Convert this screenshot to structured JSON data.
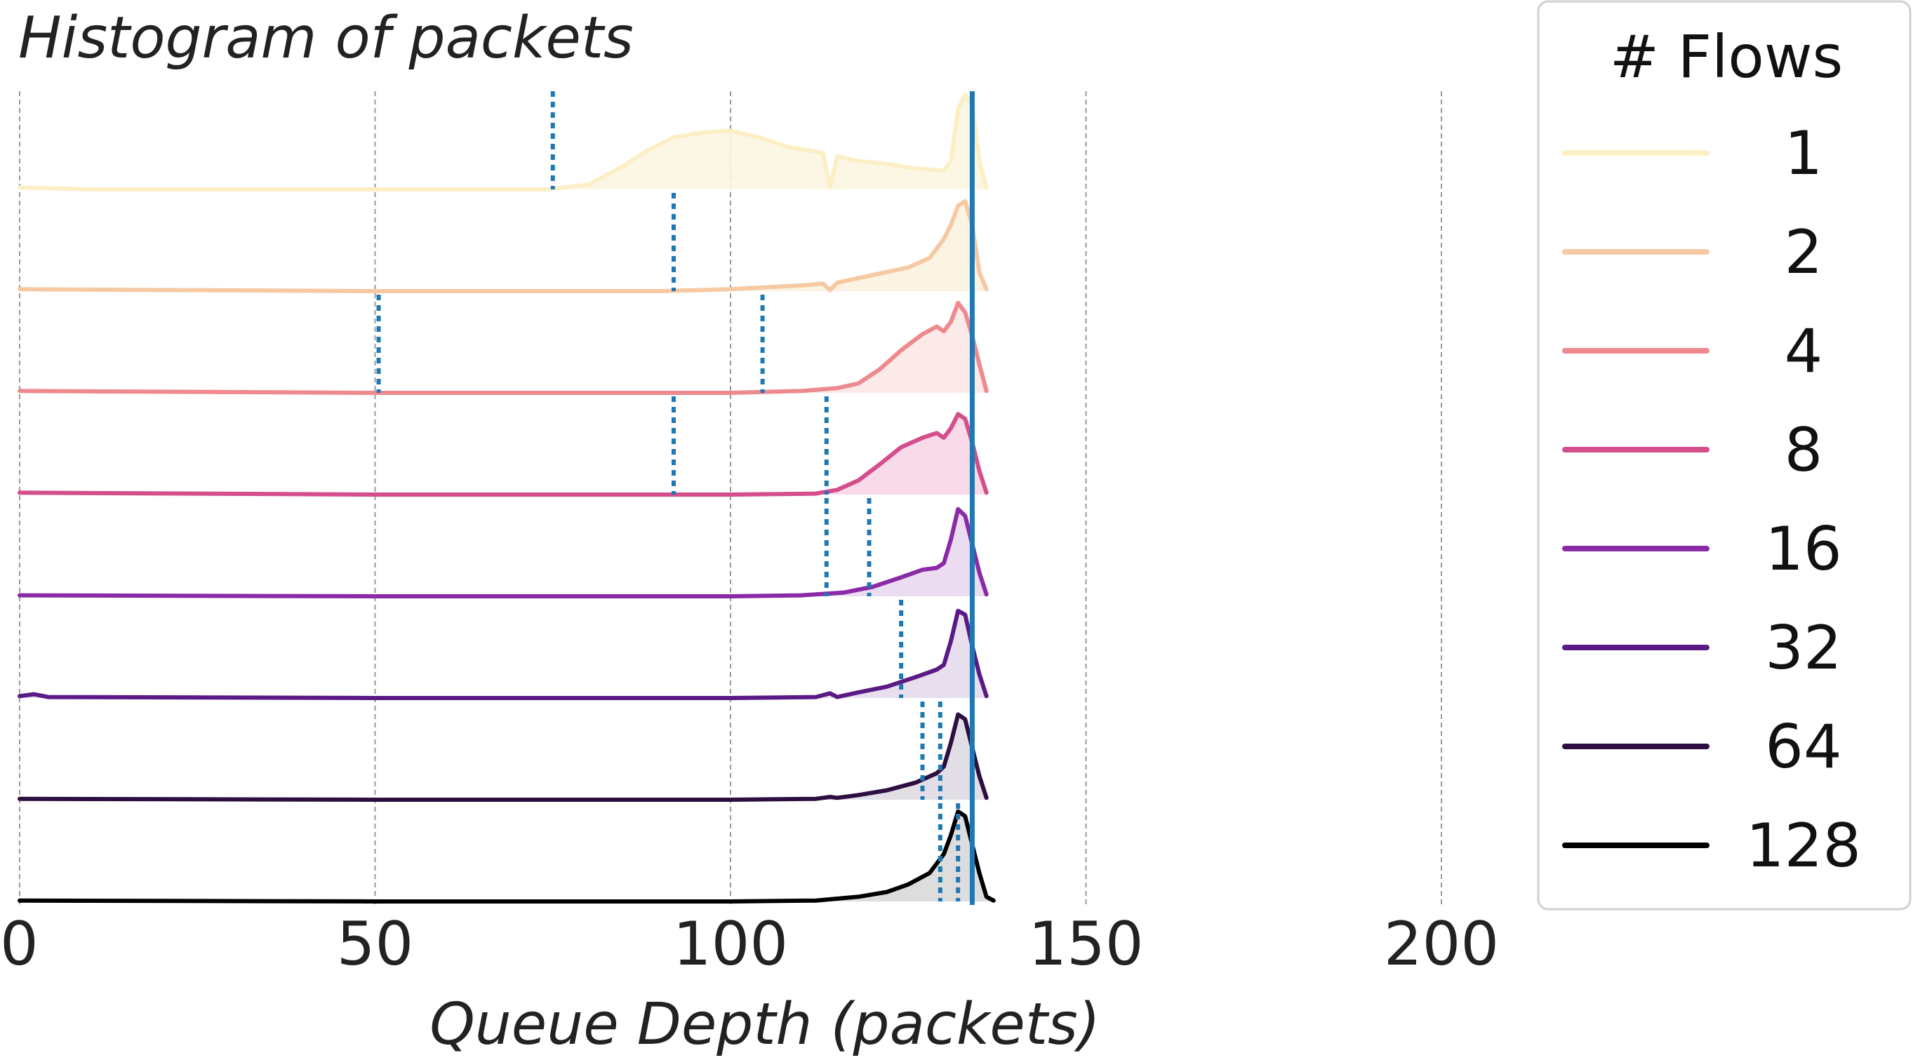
{
  "chart_data": {
    "type": "line",
    "subtype": "ridgeline",
    "title": "Histogram of packets",
    "xlabel": "Queue Depth (packets)",
    "ylabel": "",
    "xlim": [
      0,
      210
    ],
    "xticks": [
      0,
      50,
      100,
      150,
      200
    ],
    "grid": "vertical dashed",
    "legend": {
      "title": "# Flows",
      "placement": "right"
    },
    "reference_line": {
      "x": 134,
      "color": "#1f77b4"
    },
    "series": [
      {
        "name": "1",
        "color": "#fcefc6",
        "fill": "#fcf6e2",
        "markers": [
          75
        ],
        "points": [
          [
            0,
            0.02
          ],
          [
            10,
            0
          ],
          [
            30,
            0
          ],
          [
            60,
            0
          ],
          [
            74,
            0
          ],
          [
            80,
            0.05
          ],
          [
            85,
            0.25
          ],
          [
            88,
            0.4
          ],
          [
            92,
            0.55
          ],
          [
            96,
            0.6
          ],
          [
            100,
            0.62
          ],
          [
            104,
            0.55
          ],
          [
            108,
            0.45
          ],
          [
            112,
            0.4
          ],
          [
            113,
            0.38
          ],
          [
            114,
            0.02
          ],
          [
            115,
            0.35
          ],
          [
            118,
            0.3
          ],
          [
            122,
            0.27
          ],
          [
            126,
            0.22
          ],
          [
            130,
            0.2
          ],
          [
            131,
            0.3
          ],
          [
            132,
            0.85
          ],
          [
            133,
            1.0
          ],
          [
            134,
            0.9
          ],
          [
            135,
            0.3
          ],
          [
            136,
            0.02
          ]
        ]
      },
      {
        "name": "2",
        "color": "#f6c9a3",
        "fill": "#fcf3e0",
        "markers": [
          92
        ],
        "points": [
          [
            0,
            0.02
          ],
          [
            50,
            0
          ],
          [
            90,
            0
          ],
          [
            100,
            0.02
          ],
          [
            110,
            0.06
          ],
          [
            113,
            0.08
          ],
          [
            114,
            0.01
          ],
          [
            115,
            0.09
          ],
          [
            120,
            0.17
          ],
          [
            125,
            0.25
          ],
          [
            128,
            0.35
          ],
          [
            130,
            0.55
          ],
          [
            131,
            0.7
          ],
          [
            132,
            0.9
          ],
          [
            133,
            0.95
          ],
          [
            134,
            0.7
          ],
          [
            135,
            0.2
          ],
          [
            136,
            0.02
          ]
        ]
      },
      {
        "name": "4",
        "color": "#ee8a8f",
        "fill": "#fce8e6",
        "markers": [
          50.5,
          104.5
        ],
        "points": [
          [
            0,
            0.02
          ],
          [
            50,
            0
          ],
          [
            100,
            0
          ],
          [
            110,
            0.02
          ],
          [
            115,
            0.05
          ],
          [
            118,
            0.1
          ],
          [
            121,
            0.25
          ],
          [
            124,
            0.45
          ],
          [
            127,
            0.62
          ],
          [
            129,
            0.7
          ],
          [
            130,
            0.65
          ],
          [
            131,
            0.75
          ],
          [
            132,
            0.95
          ],
          [
            133,
            0.85
          ],
          [
            134,
            0.6
          ],
          [
            135,
            0.3
          ],
          [
            136,
            0.02
          ]
        ]
      },
      {
        "name": "8",
        "color": "#d44e8c",
        "fill": "#f8d6e5",
        "markers": [
          92,
          113.5
        ],
        "points": [
          [
            0,
            0.02
          ],
          [
            50,
            0
          ],
          [
            100,
            0
          ],
          [
            112,
            0.01
          ],
          [
            115,
            0.05
          ],
          [
            118,
            0.15
          ],
          [
            121,
            0.32
          ],
          [
            124,
            0.5
          ],
          [
            127,
            0.6
          ],
          [
            129,
            0.65
          ],
          [
            130,
            0.6
          ],
          [
            131,
            0.7
          ],
          [
            132,
            0.85
          ],
          [
            133,
            0.8
          ],
          [
            134,
            0.55
          ],
          [
            135,
            0.25
          ],
          [
            136,
            0.02
          ]
        ]
      },
      {
        "name": "16",
        "color": "#8a2aa6",
        "fill": "#ead8ef",
        "markers": [
          113.5,
          119.5
        ],
        "points": [
          [
            0,
            0.01
          ],
          [
            50,
            0
          ],
          [
            100,
            0
          ],
          [
            110,
            0.01
          ],
          [
            114,
            0.03
          ],
          [
            116,
            0.04
          ],
          [
            120,
            0.1
          ],
          [
            124,
            0.2
          ],
          [
            127,
            0.28
          ],
          [
            129,
            0.3
          ],
          [
            130,
            0.35
          ],
          [
            131,
            0.6
          ],
          [
            132,
            0.92
          ],
          [
            133,
            0.85
          ],
          [
            134,
            0.55
          ],
          [
            135,
            0.25
          ],
          [
            136,
            0.02
          ]
        ]
      },
      {
        "name": "32",
        "color": "#5a1a86",
        "fill": "#e4dbeb",
        "markers": [
          124
        ],
        "points": [
          [
            0,
            0.02
          ],
          [
            2,
            0.04
          ],
          [
            4,
            0.01
          ],
          [
            50,
            0
          ],
          [
            100,
            0
          ],
          [
            112,
            0.01
          ],
          [
            114,
            0.05
          ],
          [
            115,
            0.01
          ],
          [
            118,
            0.06
          ],
          [
            122,
            0.12
          ],
          [
            126,
            0.22
          ],
          [
            129,
            0.3
          ],
          [
            130,
            0.35
          ],
          [
            131,
            0.6
          ],
          [
            132,
            0.92
          ],
          [
            133,
            0.88
          ],
          [
            134,
            0.55
          ],
          [
            135,
            0.25
          ],
          [
            136,
            0.02
          ]
        ]
      },
      {
        "name": "64",
        "color": "#2c0f40",
        "fill": "#dedbe2",
        "markers": [
          127,
          129.5
        ],
        "points": [
          [
            0,
            0.01
          ],
          [
            50,
            0
          ],
          [
            100,
            0
          ],
          [
            112,
            0.01
          ],
          [
            114,
            0.03
          ],
          [
            115,
            0.02
          ],
          [
            118,
            0.05
          ],
          [
            122,
            0.1
          ],
          [
            126,
            0.18
          ],
          [
            129,
            0.28
          ],
          [
            130,
            0.35
          ],
          [
            131,
            0.6
          ],
          [
            132,
            0.9
          ],
          [
            133,
            0.85
          ],
          [
            134,
            0.55
          ],
          [
            135,
            0.25
          ],
          [
            136,
            0.02
          ]
        ]
      },
      {
        "name": "128",
        "color": "#000000",
        "fill": "#d9d9d9",
        "markers": [
          129.5,
          132
        ],
        "points": [
          [
            0,
            0.01
          ],
          [
            50,
            0
          ],
          [
            100,
            0
          ],
          [
            112,
            0.01
          ],
          [
            118,
            0.05
          ],
          [
            122,
            0.1
          ],
          [
            125,
            0.18
          ],
          [
            128,
            0.3
          ],
          [
            130,
            0.5
          ],
          [
            131,
            0.7
          ],
          [
            132,
            0.95
          ],
          [
            133,
            0.9
          ],
          [
            134,
            0.6
          ],
          [
            135,
            0.3
          ],
          [
            136,
            0.05
          ],
          [
            137,
            0.01
          ]
        ]
      }
    ]
  }
}
